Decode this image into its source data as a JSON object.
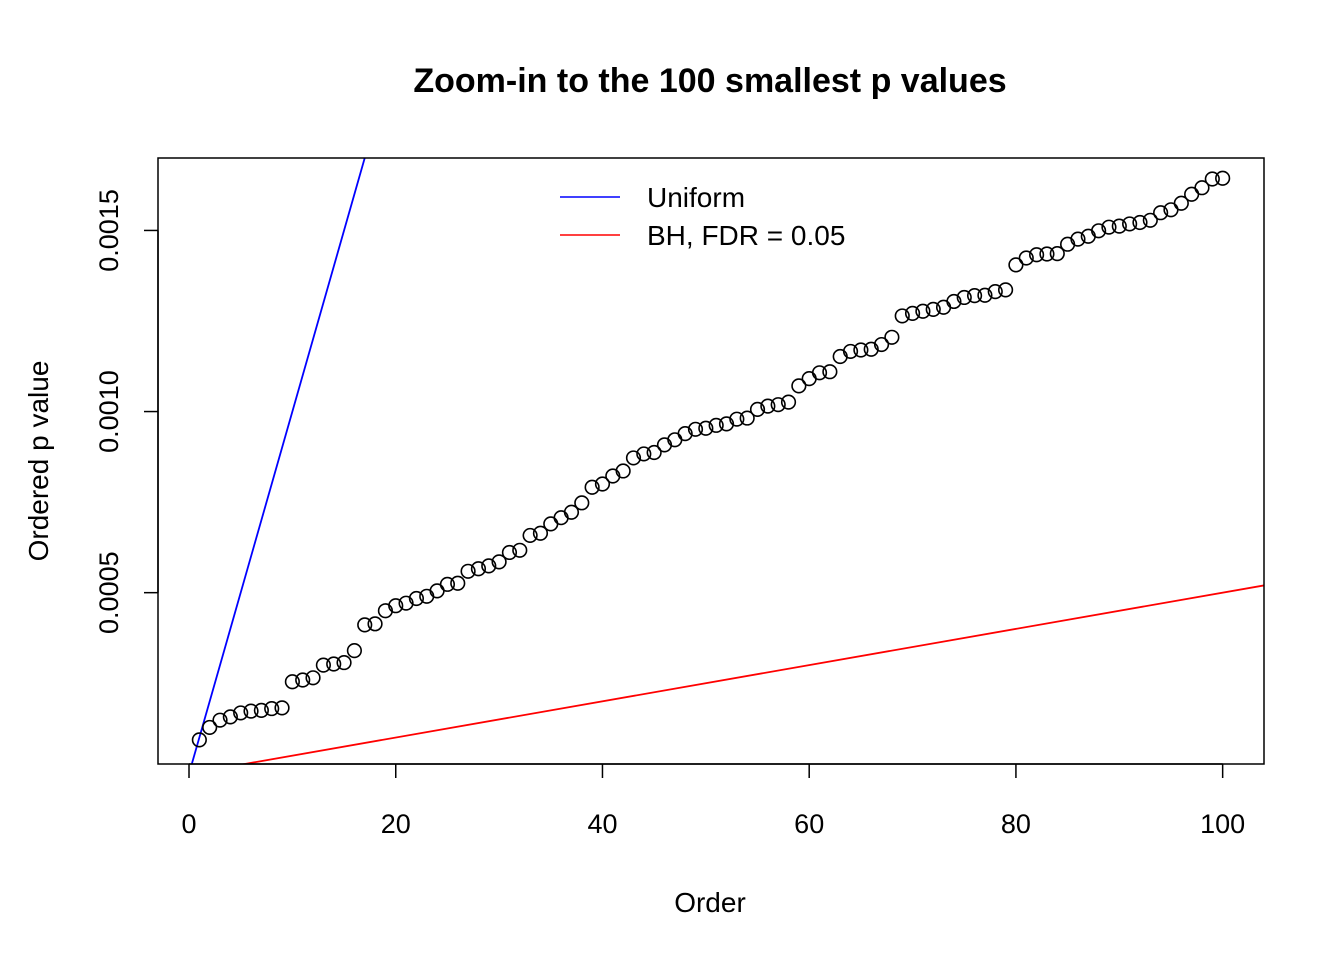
{
  "chart_data": {
    "type": "scatter",
    "title": "Zoom-in to the 100 smallest p values",
    "xlabel": "Order",
    "ylabel": "Ordered p value",
    "xlim": [
      -3,
      104
    ],
    "ylim": [
      2.7e-05,
      0.0017
    ],
    "x_ticks": [
      0,
      20,
      40,
      60,
      80,
      100
    ],
    "x_tick_labels": [
      "0",
      "20",
      "40",
      "60",
      "80",
      "100"
    ],
    "y_ticks": [
      0.0005,
      0.001,
      0.0015
    ],
    "y_tick_labels": [
      "0.0005",
      "0.0010",
      "0.0015"
    ],
    "grid": false,
    "legend": {
      "placement": "top-center",
      "entries": [
        {
          "label": "Uniform",
          "color": "#0000ff"
        },
        {
          "label": "BH, FDR = 0.05",
          "color": "#ff0000"
        }
      ]
    },
    "lines": [
      {
        "name": "Uniform",
        "color": "#0000ff",
        "slope": 0.0001,
        "intercept": 0
      },
      {
        "name": "BH, FDR = 0.05",
        "color": "#ff0000",
        "slope": 5e-06,
        "intercept": 0
      }
    ],
    "points": {
      "color": "#000000",
      "x": [
        1,
        2,
        3,
        4,
        5,
        6,
        7,
        8,
        9,
        10,
        11,
        12,
        13,
        14,
        15,
        16,
        17,
        18,
        19,
        20,
        21,
        22,
        23,
        24,
        25,
        26,
        27,
        28,
        29,
        30,
        31,
        32,
        33,
        34,
        35,
        36,
        37,
        38,
        39,
        40,
        41,
        42,
        43,
        44,
        45,
        46,
        47,
        48,
        49,
        50,
        51,
        52,
        53,
        54,
        55,
        56,
        57,
        58,
        59,
        60,
        61,
        62,
        63,
        64,
        65,
        66,
        67,
        68,
        69,
        70,
        71,
        72,
        73,
        74,
        75,
        76,
        77,
        78,
        79,
        80,
        81,
        82,
        83,
        84,
        85,
        86,
        87,
        88,
        89,
        90,
        91,
        92,
        93,
        94,
        95,
        96,
        97,
        98,
        99,
        100
      ],
      "y": [
        9.35e-05,
        0.000128,
        0.000148,
        0.000157,
        0.000168,
        0.000173,
        0.000175,
        0.00018,
        0.000182,
        0.000254,
        0.000259,
        0.000265,
        0.0003,
        0.000303,
        0.000307,
        0.00034,
        0.000411,
        0.000414,
        0.00045,
        0.000464,
        0.000471,
        0.000484,
        0.00049,
        0.000505,
        0.000523,
        0.000526,
        0.000559,
        0.000566,
        0.000574,
        0.000585,
        0.000611,
        0.000617,
        0.000658,
        0.000664,
        0.00069,
        0.000707,
        0.000722,
        0.000748,
        0.000791,
        0.0008,
        0.000822,
        0.000836,
        0.000872,
        0.000883,
        0.000887,
        0.000908,
        0.000922,
        0.000939,
        0.000951,
        0.000954,
        0.000962,
        0.000966,
        0.000979,
        0.000982,
        0.001006,
        0.001015,
        0.001019,
        0.001026,
        0.001071,
        0.001091,
        0.001107,
        0.00111,
        0.001152,
        0.001166,
        0.00117,
        0.001172,
        0.001185,
        0.001205,
        0.001264,
        0.001271,
        0.001277,
        0.001282,
        0.001288,
        0.001304,
        0.001315,
        0.00132,
        0.001321,
        0.001331,
        0.001336,
        0.001405,
        0.001424,
        0.001433,
        0.001435,
        0.001436,
        0.001462,
        0.001476,
        0.001484,
        0.001499,
        0.001509,
        0.001512,
        0.001518,
        0.001522,
        0.001528,
        0.001549,
        0.001557,
        0.001575,
        0.0016,
        0.001618,
        0.001642,
        0.001644
      ]
    }
  }
}
